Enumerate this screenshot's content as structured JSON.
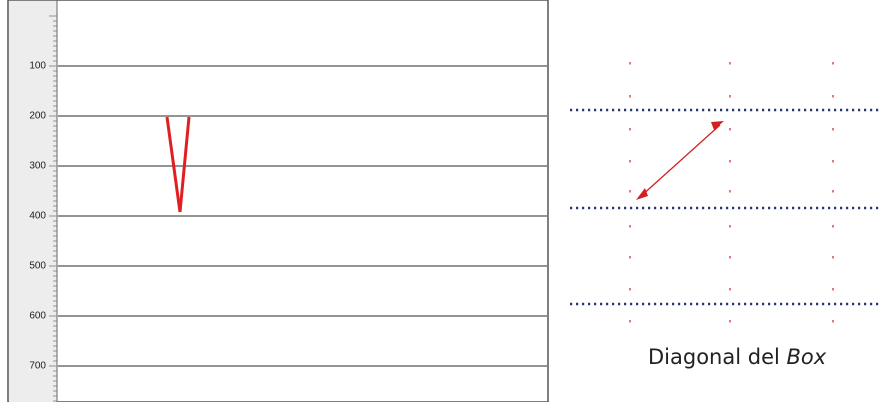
{
  "axis": {
    "labels": [
      "100",
      "200",
      "300",
      "400",
      "500",
      "600",
      "700"
    ]
  },
  "caption": {
    "text": "Diagonal del ",
    "emphasis": "Box"
  }
}
